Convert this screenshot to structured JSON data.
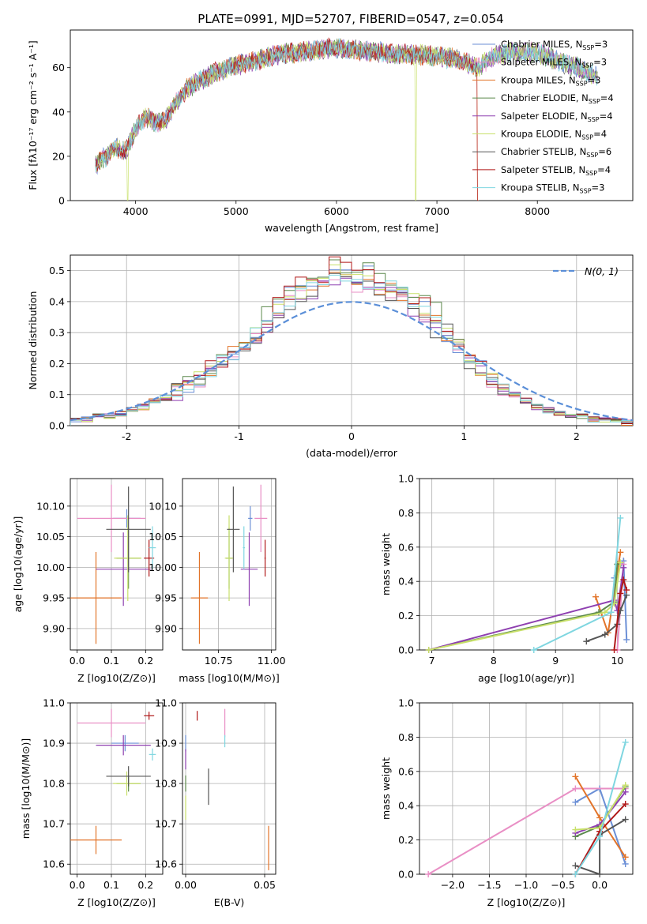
{
  "title": "PLATE=0991, MJD=52707, FIBERID=0547, z=0.054",
  "models": [
    {
      "name": "Chabrier MILES, N$_{SSP}$=3",
      "label_main": "Chabrier MILES, N",
      "label_sub": "SSP",
      "label_tail": "=3",
      "color": "#6b8fd6"
    },
    {
      "name": "Salpeter MILES",
      "label_main": "Salpeter MILES, N",
      "label_sub": "SSP",
      "label_tail": "=3",
      "color": "#e98fc5"
    },
    {
      "name": "Kroupa MILES",
      "label_main": "Kroupa MILES, N",
      "label_sub": "SSP",
      "label_tail": "=3",
      "color": "#e2742a"
    },
    {
      "name": "Chabrier ELODIE",
      "label_main": "Chabrier ELODIE, N",
      "label_sub": "SSP",
      "label_tail": "=4",
      "color": "#5d8a4e"
    },
    {
      "name": "Salpeter ELODIE",
      "label_main": "Salpeter ELODIE, N",
      "label_sub": "SSP",
      "label_tail": "=4",
      "color": "#8e3fb0"
    },
    {
      "name": "Kroupa ELODIE",
      "label_main": "Kroupa ELODIE, N",
      "label_sub": "SSP",
      "label_tail": "=4",
      "color": "#c8e06a"
    },
    {
      "name": "Chabrier STELIB",
      "label_main": "Chabrier STELIB, N",
      "label_sub": "SSP",
      "label_tail": "=6",
      "color": "#555555"
    },
    {
      "name": "Salpeter STELIB",
      "label_main": "Salpeter STELIB, N",
      "label_sub": "SSP",
      "label_tail": "=4",
      "color": "#b01818"
    },
    {
      "name": "Kroupa STELIB",
      "label_main": "Kroupa STELIB, N",
      "label_sub": "SSP",
      "label_tail": "=3",
      "color": "#7fd6e0"
    }
  ],
  "chart_data": [
    {
      "id": "spectrum",
      "type": "line",
      "xlabel": "wavelength [Angstrom, rest frame]",
      "ylabel": "Flux [fλ10⁻¹⁷ erg cm⁻² s⁻¹ A⁻¹]",
      "xlim": [
        3350,
        8950
      ],
      "ylim": [
        0,
        77
      ],
      "xticks": [
        4000,
        5000,
        6000,
        7000,
        8000
      ],
      "yticks": [
        0,
        20,
        40,
        60
      ],
      "continuum": [
        [
          3600,
          16
        ],
        [
          3700,
          20
        ],
        [
          3800,
          24
        ],
        [
          3900,
          22
        ],
        [
          4000,
          32
        ],
        [
          4100,
          38
        ],
        [
          4200,
          35
        ],
        [
          4300,
          36
        ],
        [
          4400,
          44
        ],
        [
          4500,
          50
        ],
        [
          4600,
          53
        ],
        [
          4800,
          58
        ],
        [
          5000,
          61
        ],
        [
          5200,
          63
        ],
        [
          5400,
          66
        ],
        [
          5600,
          67
        ],
        [
          5800,
          68
        ],
        [
          6000,
          69
        ],
        [
          6200,
          68
        ],
        [
          6400,
          67
        ],
        [
          6600,
          66
        ],
        [
          6800,
          66
        ],
        [
          7000,
          65
        ],
        [
          7200,
          64
        ],
        [
          7400,
          60
        ],
        [
          7600,
          66
        ],
        [
          7800,
          67
        ],
        [
          8000,
          67
        ],
        [
          8200,
          63
        ],
        [
          8400,
          60
        ],
        [
          8600,
          56
        ]
      ],
      "dips": [
        [
          3920,
          0
        ],
        [
          6790,
          0
        ],
        [
          7400,
          0
        ]
      ],
      "legend": "upper right"
    },
    {
      "id": "residual-hist",
      "type": "step-histogram",
      "xlabel": "(data-model)/error",
      "ylabel": "Normed distribution",
      "xlim": [
        -2.5,
        2.5
      ],
      "ylim": [
        0,
        0.55
      ],
      "xticks": [
        -2,
        -1,
        0,
        1,
        2
      ],
      "yticks": [
        0.0,
        0.1,
        0.2,
        0.3,
        0.4,
        0.5
      ],
      "bin_width": 0.1,
      "typical_bins": [
        0.02,
        0.02,
        0.03,
        0.03,
        0.04,
        0.05,
        0.06,
        0.08,
        0.09,
        0.11,
        0.13,
        0.15,
        0.18,
        0.21,
        0.23,
        0.25,
        0.29,
        0.33,
        0.38,
        0.41,
        0.43,
        0.45,
        0.47,
        0.5,
        0.48,
        0.46,
        0.47,
        0.45,
        0.44,
        0.43,
        0.4,
        0.37,
        0.34,
        0.3,
        0.26,
        0.21,
        0.18,
        0.15,
        0.12,
        0.1,
        0.08,
        0.06,
        0.05,
        0.04,
        0.03,
        0.03,
        0.02,
        0.02,
        0.02,
        0.01
      ],
      "gaussian_label": "N(0, 1)",
      "gaussian_color": "#5b8fd8"
    },
    {
      "id": "age-vs-Z",
      "type": "errorbar",
      "xlabel": "Z [log10(Z/Z⊙)]",
      "ylabel": "age [log10(age/yr)]",
      "xlim": [
        -0.02,
        0.25
      ],
      "ylim": [
        9.865,
        10.145
      ],
      "xticks": [
        0.0,
        0.1,
        0.2
      ],
      "xticklabels": [
        "0.0",
        "0.1",
        "0.2"
      ],
      "yticks": [
        9.9,
        9.95,
        10.0,
        10.05,
        10.1
      ],
      "yticklabels": [
        "9.90",
        "9.95",
        "10.00",
        "10.05",
        "10.10"
      ],
      "points": [
        {
          "series": 0,
          "x": 0.145,
          "y": 10.08,
          "xerr": 0.04,
          "yerr": 0.015
        },
        {
          "series": 1,
          "x": 0.1,
          "y": 10.08,
          "xerr": 0.1,
          "yerr": 0.055
        },
        {
          "series": 2,
          "x": 0.055,
          "y": 9.95,
          "xerr": 0.075,
          "yerr": 0.075
        },
        {
          "series": 3,
          "x": 0.15,
          "y": 10.015,
          "xerr": 0.035,
          "yerr": 0.05
        },
        {
          "series": 4,
          "x": 0.135,
          "y": 9.997,
          "xerr": 0.08,
          "yerr": 0.06
        },
        {
          "series": 5,
          "x": 0.148,
          "y": 10.015,
          "xerr": 0.04,
          "yerr": 0.07
        },
        {
          "series": 6,
          "x": 0.15,
          "y": 10.062,
          "xerr": 0.065,
          "yerr": 0.07
        },
        {
          "series": 7,
          "x": 0.21,
          "y": 10.015,
          "xerr": 0.015,
          "yerr": 0.03
        },
        {
          "series": 8,
          "x": 0.22,
          "y": 10.032,
          "xerr": 0.01,
          "yerr": 0.035
        }
      ]
    },
    {
      "id": "age-vs-mass",
      "type": "errorbar",
      "xlabel": "mass [log10(M/M⊙)]",
      "ylabel": "",
      "xlim": [
        10.58,
        11.02
      ],
      "ylim": [
        9.865,
        10.145
      ],
      "xticks": [
        10.75,
        11.0
      ],
      "xticklabels": [
        "10.75",
        "11.00"
      ],
      "yticks": [
        9.9,
        9.95,
        10.0,
        10.05,
        10.1
      ],
      "yticklabels": [
        "9.90",
        "9.95",
        "10.00",
        "10.05",
        "10.10"
      ],
      "points": [
        {
          "series": 0,
          "x": 10.9,
          "y": 10.08,
          "xerr": 0.01,
          "yerr": 0.02
        },
        {
          "series": 1,
          "x": 10.95,
          "y": 10.08,
          "xerr": 0.03,
          "yerr": 0.055
        },
        {
          "series": 2,
          "x": 10.66,
          "y": 9.95,
          "xerr": 0.04,
          "yerr": 0.075
        },
        {
          "series": 3,
          "x": 10.8,
          "y": 10.015,
          "xerr": 0.015,
          "yerr": 0.05
        },
        {
          "series": 4,
          "x": 10.895,
          "y": 9.997,
          "xerr": 0.04,
          "yerr": 0.06
        },
        {
          "series": 5,
          "x": 10.8,
          "y": 10.015,
          "xerr": 0.02,
          "yerr": 0.07
        },
        {
          "series": 6,
          "x": 10.82,
          "y": 10.062,
          "xerr": 0.03,
          "yerr": 0.07
        },
        {
          "series": 7,
          "x": 10.97,
          "y": 10.015,
          "xerr": 0.003,
          "yerr": 0.03
        },
        {
          "series": 8,
          "x": 10.87,
          "y": 10.032,
          "xerr": 0.005,
          "yerr": 0.035
        }
      ]
    },
    {
      "id": "weight-vs-age",
      "type": "line",
      "xlabel": "age [log10(age/yr)]",
      "ylabel": "mass weight",
      "xlim": [
        6.8,
        10.25
      ],
      "ylim": [
        0.0,
        1.0
      ],
      "xticks": [
        7,
        8,
        9,
        10
      ],
      "yticks": [
        0.0,
        0.2,
        0.4,
        0.6,
        0.8,
        1.0
      ],
      "yticklabels": [
        "0.0",
        "0.2",
        "0.4",
        "0.6",
        "0.8",
        "1.0"
      ],
      "series": [
        {
          "series": 0,
          "points": [
            [
              9.95,
              0.42
            ],
            [
              10.1,
              0.52
            ],
            [
              10.15,
              0.06
            ]
          ]
        },
        {
          "series": 1,
          "points": [
            [
              10.0,
              0.5
            ],
            [
              10.1,
              0.5
            ],
            [
              10.0,
              0.0
            ]
          ]
        },
        {
          "series": 2,
          "points": [
            [
              9.65,
              0.31
            ],
            [
              9.85,
              0.1
            ],
            [
              10.05,
              0.57
            ]
          ]
        },
        {
          "series": 3,
          "points": [
            [
              6.95,
              0.0
            ],
            [
              9.7,
              0.22
            ],
            [
              9.95,
              0.28
            ],
            [
              10.0,
              0.5
            ]
          ]
        },
        {
          "series": 4,
          "points": [
            [
              6.95,
              0.0
            ],
            [
              9.95,
              0.29
            ],
            [
              10.0,
              0.23
            ],
            [
              10.1,
              0.48
            ]
          ]
        },
        {
          "series": 5,
          "points": [
            [
              6.95,
              0.0
            ],
            [
              9.8,
              0.22
            ],
            [
              9.95,
              0.27
            ],
            [
              10.05,
              0.51
            ]
          ]
        },
        {
          "series": 6,
          "points": [
            [
              9.5,
              0.05
            ],
            [
              9.8,
              0.09
            ],
            [
              10.0,
              0.15
            ],
            [
              10.05,
              0.23
            ],
            [
              10.15,
              0.32
            ]
          ]
        },
        {
          "series": 7,
          "points": [
            [
              9.95,
              0.0
            ],
            [
              10.05,
              0.33
            ],
            [
              10.1,
              0.41
            ],
            [
              10.15,
              0.35
            ]
          ]
        },
        {
          "series": 8,
          "points": [
            [
              8.65,
              0.0
            ],
            [
              9.9,
              0.22
            ],
            [
              10.05,
              0.77
            ]
          ]
        }
      ]
    },
    {
      "id": "mass-vs-Z",
      "type": "errorbar",
      "xlabel": "Z [log10(Z/Z⊙)]",
      "ylabel": "mass [log10(M/M⊙)]",
      "xlim": [
        -0.02,
        0.25
      ],
      "ylim": [
        10.575,
        11.0
      ],
      "xticks": [
        0.0,
        0.1,
        0.2
      ],
      "xticklabels": [
        "0.0",
        "0.1",
        "0.2"
      ],
      "yticks": [
        10.6,
        10.7,
        10.8,
        10.9,
        11.0
      ],
      "yticklabels": [
        "10.6",
        "10.7",
        "10.8",
        "10.9",
        "11.0"
      ],
      "points": [
        {
          "series": 0,
          "x": 0.14,
          "y": 10.9,
          "xerr": 0.04,
          "yerr": 0.02
        },
        {
          "series": 1,
          "x": 0.1,
          "y": 10.95,
          "xerr": 0.1,
          "yerr": 0.035
        },
        {
          "series": 2,
          "x": 0.055,
          "y": 10.66,
          "xerr": 0.075,
          "yerr": 0.035
        },
        {
          "series": 3,
          "x": 0.15,
          "y": 10.8,
          "xerr": 0.035,
          "yerr": 0.02
        },
        {
          "series": 4,
          "x": 0.135,
          "y": 10.895,
          "xerr": 0.08,
          "yerr": 0.025
        },
        {
          "series": 5,
          "x": 0.145,
          "y": 10.8,
          "xerr": 0.04,
          "yerr": 0.03
        },
        {
          "series": 6,
          "x": 0.15,
          "y": 10.818,
          "xerr": 0.065,
          "yerr": 0.025
        },
        {
          "series": 7,
          "x": 0.21,
          "y": 10.968,
          "xerr": 0.015,
          "yerr": 0.01
        },
        {
          "series": 8,
          "x": 0.22,
          "y": 10.872,
          "xerr": 0.01,
          "yerr": 0.015
        }
      ]
    },
    {
      "id": "mass-vs-EBV",
      "type": "errorbar",
      "xlabel": "E(B-V)",
      "ylabel": "",
      "xlim": [
        -0.002,
        0.057
      ],
      "ylim": [
        10.575,
        11.0
      ],
      "xticks": [
        0.0,
        0.05
      ],
      "xticklabels": [
        "0.00",
        "0.05"
      ],
      "yticks": [
        10.6,
        10.7,
        10.8,
        10.9,
        11.0
      ],
      "yticklabels": [
        "10.6",
        "10.7",
        "10.8",
        "10.9",
        "11.0"
      ],
      "points": [
        {
          "series": 0,
          "x": 0.0,
          "y": 10.9,
          "xerr": 0,
          "yerr": 0.02
        },
        {
          "series": 1,
          "x": 0.0248,
          "y": 10.95,
          "xerr": 0,
          "yerr": 0.035
        },
        {
          "series": 2,
          "x": 0.0525,
          "y": 10.64,
          "xerr": 0,
          "yerr": 0.055
        },
        {
          "series": 3,
          "x": 0.0,
          "y": 10.8,
          "xerr": 0,
          "yerr": 0.02
        },
        {
          "series": 4,
          "x": 0.0,
          "y": 10.86,
          "xerr": 0,
          "yerr": 0.025
        },
        {
          "series": 5,
          "x": 0.0,
          "y": 10.74,
          "xerr": 0,
          "yerr": 0.03
        },
        {
          "series": 6,
          "x": 0.0145,
          "y": 10.792,
          "xerr": 0,
          "yerr": 0.045
        },
        {
          "series": 7,
          "x": 0.0073,
          "y": 10.968,
          "xerr": 0,
          "yerr": 0.012
        },
        {
          "series": 8,
          "x": 0.0248,
          "y": 10.905,
          "xerr": 0,
          "yerr": 0.015
        }
      ]
    },
    {
      "id": "weight-vs-Z",
      "type": "line",
      "xlabel": "Z [log10(Z/Z⊙)]",
      "ylabel": "mass weight",
      "xlim": [
        -2.45,
        0.45
      ],
      "ylim": [
        0.0,
        1.0
      ],
      "xticks": [
        -2.0,
        -1.5,
        -1.0,
        -0.5,
        0.0
      ],
      "xticklabels": [
        "−2.0",
        "−1.5",
        "−1.0",
        "−0.5",
        "0.0"
      ],
      "yticks": [
        0.0,
        0.2,
        0.4,
        0.6,
        0.8,
        1.0
      ],
      "yticklabels": [
        "0.0",
        "0.2",
        "0.4",
        "0.6",
        "0.8",
        "1.0"
      ],
      "series": [
        {
          "series": 0,
          "points": [
            [
              -0.33,
              0.42
            ],
            [
              0.0,
              0.5
            ],
            [
              0.35,
              0.06
            ]
          ]
        },
        {
          "series": 1,
          "points": [
            [
              -2.33,
              0.0
            ],
            [
              -0.33,
              0.5
            ],
            [
              0.35,
              0.5
            ]
          ]
        },
        {
          "series": 2,
          "points": [
            [
              -0.33,
              0.57
            ],
            [
              0.0,
              0.33
            ],
            [
              0.35,
              0.1
            ]
          ]
        },
        {
          "series": 3,
          "points": [
            [
              -0.33,
              0.22
            ],
            [
              0.0,
              0.28
            ],
            [
              0.35,
              0.51
            ]
          ]
        },
        {
          "series": 4,
          "points": [
            [
              -0.33,
              0.24
            ],
            [
              0.0,
              0.29
            ],
            [
              0.35,
              0.48
            ]
          ]
        },
        {
          "series": 5,
          "points": [
            [
              -0.33,
              0.26
            ],
            [
              0.0,
              0.27
            ],
            [
              0.35,
              0.52
            ]
          ]
        },
        {
          "series": 6,
          "points": [
            [
              -0.33,
              0.05
            ],
            [
              0.0,
              0.0
            ],
            [
              0.0,
              0.23
            ],
            [
              0.35,
              0.32
            ]
          ]
        },
        {
          "series": 7,
          "points": [
            [
              -0.33,
              0.0
            ],
            [
              0.0,
              0.25
            ],
            [
              0.35,
              0.41
            ]
          ]
        },
        {
          "series": 8,
          "points": [
            [
              -0.33,
              0.0
            ],
            [
              0.0,
              0.22
            ],
            [
              0.35,
              0.77
            ]
          ]
        }
      ]
    }
  ]
}
